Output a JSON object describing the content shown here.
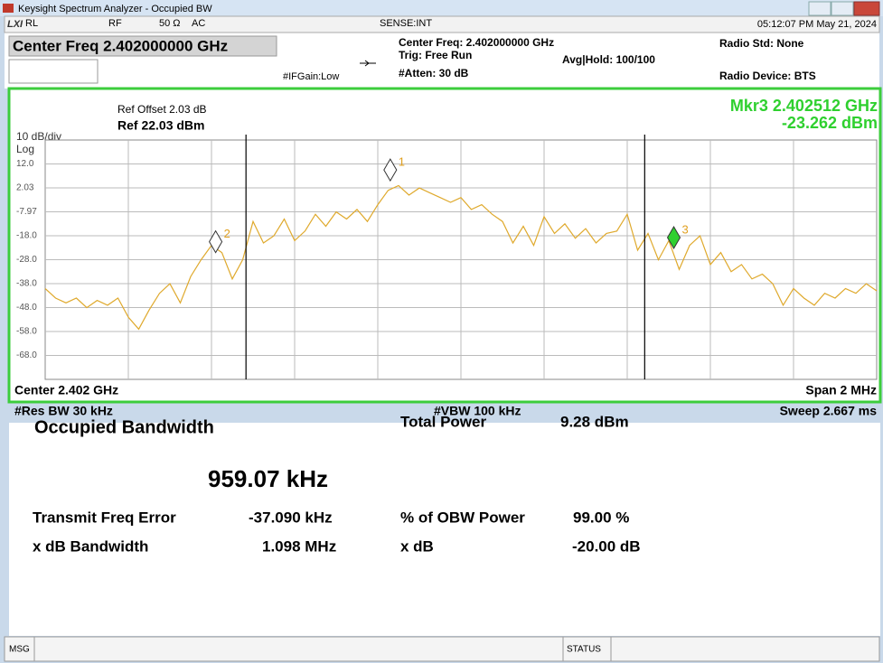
{
  "window": {
    "title": "Keysight Spectrum Analyzer - Occupied BW"
  },
  "header": {
    "rl": "RL",
    "rf": "RF",
    "impedance": "50 Ω",
    "coupling": "AC",
    "sense": "SENSE:INT",
    "datetime": "05:12:07 PM May 21, 2024",
    "center_freq": "Center Freq 2.402000000 GHz",
    "if_gain": "#IFGain:Low",
    "center_freq_info": "Center Freq: 2.402000000 GHz",
    "trig": "Trig: Free Run",
    "avg_hold": "Avg|Hold: 100/100",
    "atten": "#Atten: 30 dB",
    "radio_std": "Radio Std: None",
    "radio_device": "Radio Device: BTS"
  },
  "display": {
    "scale": "10 dB/div",
    "scale_type": "Log",
    "ref_offset": "Ref Offset 2.03 dB",
    "ref_level": "Ref 22.03 dBm",
    "marker_freq": "Mkr3  2.402512 GHz",
    "marker_level": "-23.262 dBm",
    "center": "Center  2.402 GHz",
    "span": "Span 2 MHz",
    "res_bw": "#Res BW  30 kHz",
    "vbw": "#VBW  100 kHz",
    "sweep": "Sweep  2.667 ms"
  },
  "chart_data": {
    "type": "line",
    "xlim": [
      2.401,
      2.403
    ],
    "ylim": [
      -77.97,
      22.03
    ],
    "yticks": [
      {
        "value": 12.03,
        "label": "12.0"
      },
      2.03,
      -7.97,
      {
        "value": -17.97,
        "label": "-18.0"
      },
      {
        "value": -27.97,
        "label": "-28.0"
      },
      {
        "value": -37.97,
        "label": "-38.0"
      },
      {
        "value": -47.97,
        "label": "-48.0"
      },
      {
        "value": -57.97,
        "label": "-58.0"
      },
      {
        "value": -67.97,
        "label": "-68.0"
      }
    ],
    "x": [
      2.401,
      2.401025,
      2.40105,
      2.401075,
      2.4011,
      2.401125,
      2.40115,
      2.401175,
      2.4012,
      2.401225,
      2.40125,
      2.401275,
      2.4013,
      2.401325,
      2.40135,
      2.401375,
      2.4014,
      2.401425,
      2.40145,
      2.401475,
      2.4015,
      2.401525,
      2.40155,
      2.401575,
      2.4016,
      2.401625,
      2.40165,
      2.401675,
      2.4017,
      2.401725,
      2.40175,
      2.401775,
      2.4018,
      2.401825,
      2.40185,
      2.401875,
      2.4019,
      2.401925,
      2.40195,
      2.401975,
      2.402,
      2.402025,
      2.40205,
      2.402075,
      2.4021,
      2.402125,
      2.40215,
      2.402175,
      2.4022,
      2.402225,
      2.40225,
      2.402275,
      2.4023,
      2.402325,
      2.40235,
      2.402375,
      2.4024,
      2.402425,
      2.40245,
      2.402475,
      2.4025,
      2.402525,
      2.40255,
      2.402575,
      2.4026,
      2.402625,
      2.40265,
      2.402675,
      2.4027,
      2.402725,
      2.40275,
      2.402775,
      2.4028,
      2.402825,
      2.40285,
      2.402875,
      2.4029,
      2.402925,
      2.40295,
      2.402975,
      2.403
    ],
    "series": [
      {
        "color": "#dfa92c",
        "values": [
          -40,
          -44,
          -46,
          -44,
          -48,
          -45,
          -47,
          -44,
          -52,
          -57,
          -49,
          -42,
          -38,
          -46,
          -35,
          -28,
          -22,
          -25,
          -36,
          -28,
          -12,
          -21,
          -18,
          -11,
          -20,
          -16,
          -9,
          -14,
          -8,
          -11,
          -7,
          -12,
          -5,
          1,
          3,
          -1,
          2,
          0,
          -2,
          -4,
          -2,
          -7,
          -5,
          -9,
          -12,
          -21,
          -14,
          -22,
          -10,
          -17,
          -13,
          -19,
          -15,
          -21,
          -17,
          -16,
          -9,
          -24,
          -17,
          -28,
          -20,
          -32,
          -22,
          -18,
          -30,
          -25,
          -33,
          -30,
          -36,
          -34,
          -38,
          -47,
          -40,
          -44,
          -47,
          -42,
          -44,
          -40,
          -42,
          -38,
          -41
        ]
      }
    ],
    "obw_lines": [
      2.401483,
      2.402442
    ],
    "markers": [
      {
        "label": "1",
        "x": 2.40183,
        "y": 5
      },
      {
        "label": "2",
        "x": 2.40141,
        "y": -25
      },
      {
        "label": "3",
        "x": 2.402512,
        "y": -23.262
      }
    ]
  },
  "results": {
    "obw_label": "Occupied Bandwidth",
    "obw_value": "959.07 kHz",
    "total_power_label": "Total Power",
    "total_power_value": "9.28 dBm",
    "freq_error_label": "Transmit Freq Error",
    "freq_error_value": "-37.090 kHz",
    "obw_power_label": "% of OBW Power",
    "obw_power_value": "99.00 %",
    "xdb_bw_label": "x dB Bandwidth",
    "xdb_bw_value": "1.098 MHz",
    "xdb_label": "x dB",
    "xdb_value": "-20.00 dB"
  },
  "status_bar": {
    "msg": "MSG",
    "status": "STATUS"
  }
}
